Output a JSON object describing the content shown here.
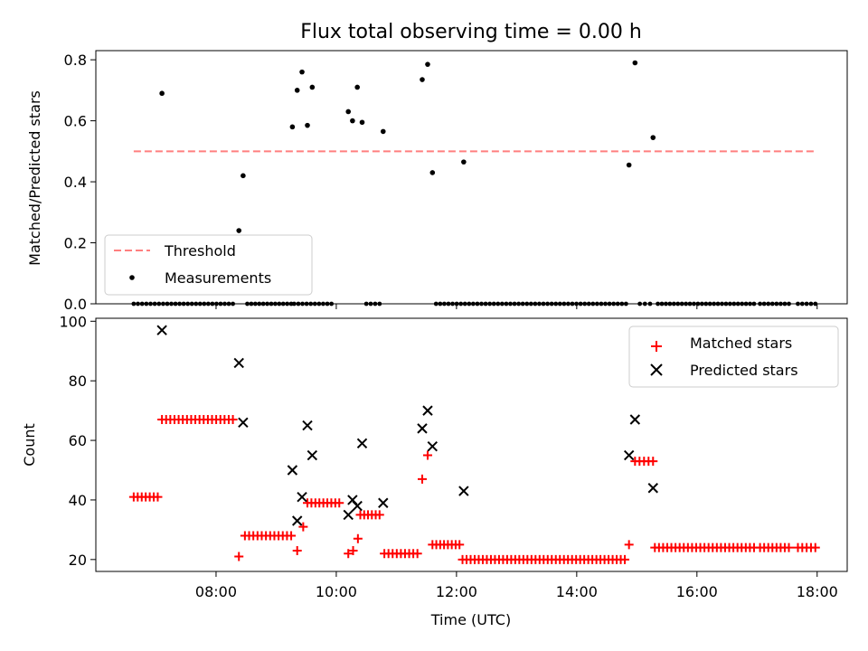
{
  "colors": {
    "threshold": "#ff7f7f",
    "measurement": "#000000",
    "matched": "#ff0000",
    "predicted": "#000000"
  },
  "chart_data": [
    {
      "type": "scatter",
      "title": "Flux total observing time = 0.00 h",
      "ylabel": "Matched/Predicted stars",
      "xlabel": "",
      "xlim": [
        6.0,
        18.5
      ],
      "ylim": [
        0.0,
        0.83
      ],
      "yticks": [
        0.0,
        0.2,
        0.4,
        0.6,
        0.8
      ],
      "ytick_labels": [
        "0.0",
        "0.2",
        "0.4",
        "0.6",
        "0.8"
      ],
      "xticks": [
        8,
        10,
        12,
        14,
        16,
        18
      ],
      "grid": false,
      "legend": {
        "position": "bottom-left",
        "entries": [
          "Threshold",
          "Measurements"
        ]
      },
      "threshold": {
        "name": "Threshold",
        "y": 0.5,
        "x": [
          6.63,
          17.97
        ]
      },
      "series": [
        {
          "name": "Measurements",
          "points": [
            [
              7.1,
              0.69
            ],
            [
              8.38,
              0.24
            ],
            [
              8.45,
              0.42
            ],
            [
              9.27,
              0.58
            ],
            [
              9.35,
              0.7
            ],
            [
              9.43,
              0.76
            ],
            [
              9.52,
              0.585
            ],
            [
              9.6,
              0.71
            ],
            [
              10.2,
              0.63
            ],
            [
              10.27,
              0.6
            ],
            [
              10.35,
              0.71
            ],
            [
              10.43,
              0.595
            ],
            [
              10.78,
              0.565
            ],
            [
              11.43,
              0.735
            ],
            [
              11.52,
              0.785
            ],
            [
              11.6,
              0.43
            ],
            [
              12.12,
              0.465
            ],
            [
              14.87,
              0.455
            ],
            [
              14.97,
              0.79
            ],
            [
              15.27,
              0.545
            ]
          ],
          "zero_values": {
            "y": 0.0,
            "segments": [
              [
                6.63,
                7.05
              ],
              [
                7.12,
                8.28
              ],
              [
                8.52,
                9.25
              ],
              [
                9.3,
                9.92
              ],
              [
                10.5,
                10.72
              ],
              [
                11.66,
                14.82
              ],
              [
                15.05,
                15.22
              ],
              [
                15.35,
                16.95
              ],
              [
                17.05,
                17.53
              ],
              [
                17.68,
                17.97
              ]
            ]
          }
        }
      ]
    },
    {
      "type": "scatter",
      "title": "",
      "ylabel": "Count",
      "xlabel": "Time (UTC)",
      "xlim": [
        6.0,
        18.5
      ],
      "ylim": [
        16,
        101
      ],
      "yticks": [
        20,
        40,
        60,
        80,
        100
      ],
      "ytick_labels": [
        "20",
        "40",
        "60",
        "80",
        "100"
      ],
      "xticks": [
        8,
        10,
        12,
        14,
        16,
        18
      ],
      "xtick_labels": [
        "08:00",
        "10:00",
        "12:00",
        "14:00",
        "16:00",
        "18:00"
      ],
      "grid": false,
      "legend": {
        "position": "top-right",
        "entries": [
          "Matched stars",
          "Predicted stars"
        ]
      },
      "series": [
        {
          "name": "Matched stars",
          "groups": [
            {
              "x_range": [
                6.63,
                7.03
              ],
              "y": 41
            },
            {
              "x_range": [
                7.1,
                8.28
              ],
              "y": 67
            },
            {
              "x_range": [
                8.48,
                9.25
              ],
              "y": 28
            },
            {
              "x_range": [
                9.52,
                10.05
              ],
              "y": 39
            },
            {
              "x_range": [
                10.4,
                10.72
              ],
              "y": 35
            },
            {
              "x_range": [
                10.8,
                11.35
              ],
              "y": 22
            },
            {
              "x_range": [
                11.6,
                12.05
              ],
              "y": 25
            },
            {
              "x_range": [
                12.1,
                14.8
              ],
              "y": 20
            },
            {
              "x_range": [
                14.97,
                15.27
              ],
              "y": 53
            },
            {
              "x_range": [
                15.3,
                16.95
              ],
              "y": 24
            },
            {
              "x_range": [
                17.05,
                17.53
              ],
              "y": 24
            },
            {
              "x_range": [
                17.68,
                17.97
              ],
              "y": 24
            }
          ],
          "points": [
            [
              8.38,
              21
            ],
            [
              9.35,
              23
            ],
            [
              9.45,
              31
            ],
            [
              10.2,
              22
            ],
            [
              10.28,
              23
            ],
            [
              10.36,
              27
            ],
            [
              11.43,
              47
            ],
            [
              11.52,
              55
            ],
            [
              14.87,
              25
            ]
          ]
        },
        {
          "name": "Predicted stars",
          "points": [
            [
              7.1,
              97
            ],
            [
              8.38,
              86
            ],
            [
              8.45,
              66
            ],
            [
              9.27,
              50
            ],
            [
              9.35,
              33
            ],
            [
              9.43,
              41
            ],
            [
              9.52,
              65
            ],
            [
              9.6,
              55
            ],
            [
              10.2,
              35
            ],
            [
              10.27,
              40
            ],
            [
              10.35,
              38
            ],
            [
              10.43,
              59
            ],
            [
              10.78,
              39
            ],
            [
              11.43,
              64
            ],
            [
              11.52,
              70
            ],
            [
              11.6,
              58
            ],
            [
              12.12,
              43
            ],
            [
              14.87,
              55
            ],
            [
              14.97,
              67
            ],
            [
              15.27,
              44
            ]
          ]
        }
      ]
    }
  ]
}
